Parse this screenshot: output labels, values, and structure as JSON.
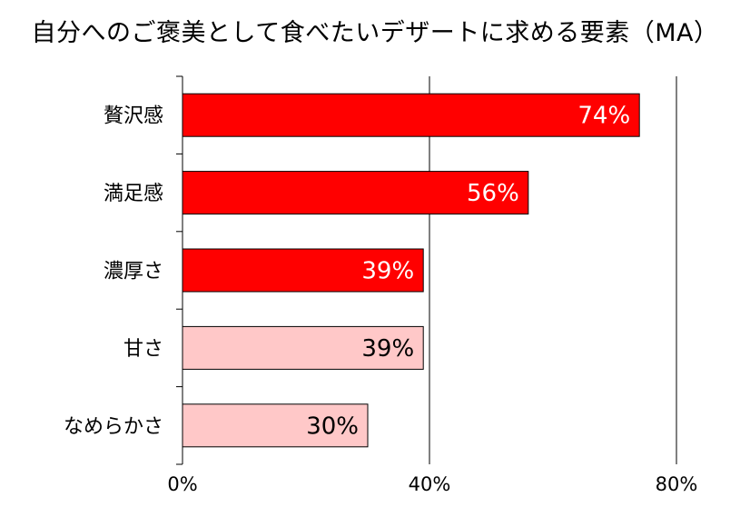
{
  "chart_data": {
    "type": "bar",
    "orientation": "horizontal",
    "title": "自分へのご褒美として食べたいデザートに求める要素（MA）",
    "categories": [
      "贅沢感",
      "満足感",
      "濃厚さ",
      "甘さ",
      "なめらかさ"
    ],
    "values": [
      74,
      56,
      39,
      39,
      30
    ],
    "value_labels": [
      "74%",
      "56%",
      "39%",
      "39%",
      "30%"
    ],
    "xlim": [
      0,
      80
    ],
    "x_ticks": [
      0,
      40,
      80
    ],
    "x_tick_labels": [
      "0%",
      "40%",
      "80%"
    ],
    "grid": true,
    "colors": {
      "strong": "#ff0000",
      "light": "#ffc8c8",
      "strong_label": "#ffffff",
      "light_label": "#000000"
    },
    "bar_styles": [
      "strong",
      "strong",
      "strong",
      "light",
      "light"
    ]
  }
}
